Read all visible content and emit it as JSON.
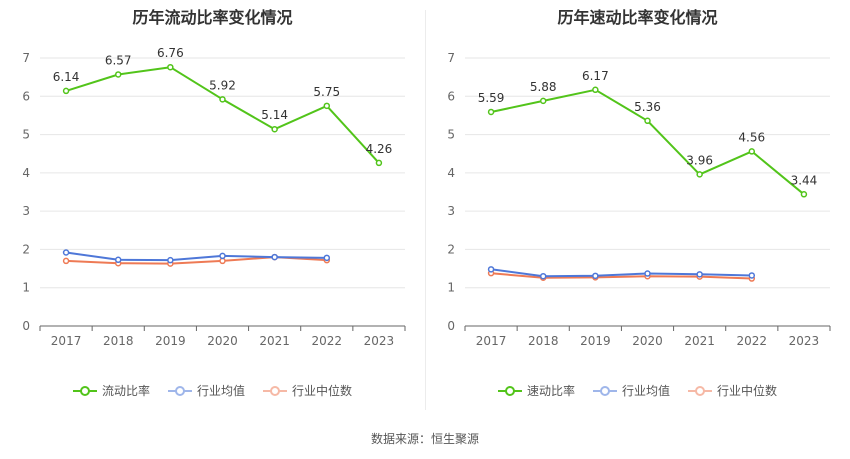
{
  "colors": {
    "main_series": "#52c41a",
    "avg_series": "#4e77d8",
    "median_series": "#ee7a55",
    "axis": "#666666",
    "grid": "#e6e6e6",
    "text": "#333333"
  },
  "footer": {
    "source_text": "数据来源：恒生聚源"
  },
  "chart_data": [
    {
      "type": "line",
      "title": "历年流动比率变化情况",
      "categories": [
        "2017",
        "2018",
        "2019",
        "2020",
        "2021",
        "2022",
        "2023"
      ],
      "y_ticks": [
        "0",
        "1",
        "2",
        "3",
        "4",
        "5",
        "6",
        "7"
      ],
      "ylim": [
        0,
        7
      ],
      "grid": true,
      "legend_position": "bottom",
      "series": [
        {
          "name": "流动比率",
          "values": [
            6.14,
            6.57,
            6.76,
            5.92,
            5.14,
            5.75,
            4.26
          ],
          "data_labels": [
            "6.14",
            "6.57",
            "6.76",
            "5.92",
            "5.14",
            "5.75",
            "4.26"
          ],
          "color": "#52c41a"
        },
        {
          "name": "行业均值",
          "values": [
            1.92,
            1.73,
            1.72,
            1.83,
            1.8,
            1.78,
            null
          ],
          "color": "#4e77d8"
        },
        {
          "name": "行业中位数",
          "values": [
            1.7,
            1.64,
            1.63,
            1.7,
            1.8,
            1.72,
            null
          ],
          "color": "#ee7a55"
        }
      ]
    },
    {
      "type": "line",
      "title": "历年速动比率变化情况",
      "categories": [
        "2017",
        "2018",
        "2019",
        "2020",
        "2021",
        "2022",
        "2023"
      ],
      "y_ticks": [
        "0",
        "1",
        "2",
        "3",
        "4",
        "5",
        "6",
        "7"
      ],
      "ylim": [
        0,
        7
      ],
      "grid": true,
      "legend_position": "bottom",
      "series": [
        {
          "name": "速动比率",
          "values": [
            5.59,
            5.88,
            6.17,
            5.36,
            3.96,
            4.56,
            3.44
          ],
          "data_labels": [
            "5.59",
            "5.88",
            "6.17",
            "5.36",
            "3.96",
            "4.56",
            "3.44"
          ],
          "color": "#52c41a"
        },
        {
          "name": "行业均值",
          "values": [
            1.48,
            1.3,
            1.31,
            1.37,
            1.35,
            1.32,
            null
          ],
          "color": "#4e77d8"
        },
        {
          "name": "行业中位数",
          "values": [
            1.38,
            1.26,
            1.27,
            1.3,
            1.29,
            1.24,
            null
          ],
          "color": "#ee7a55"
        }
      ]
    }
  ]
}
